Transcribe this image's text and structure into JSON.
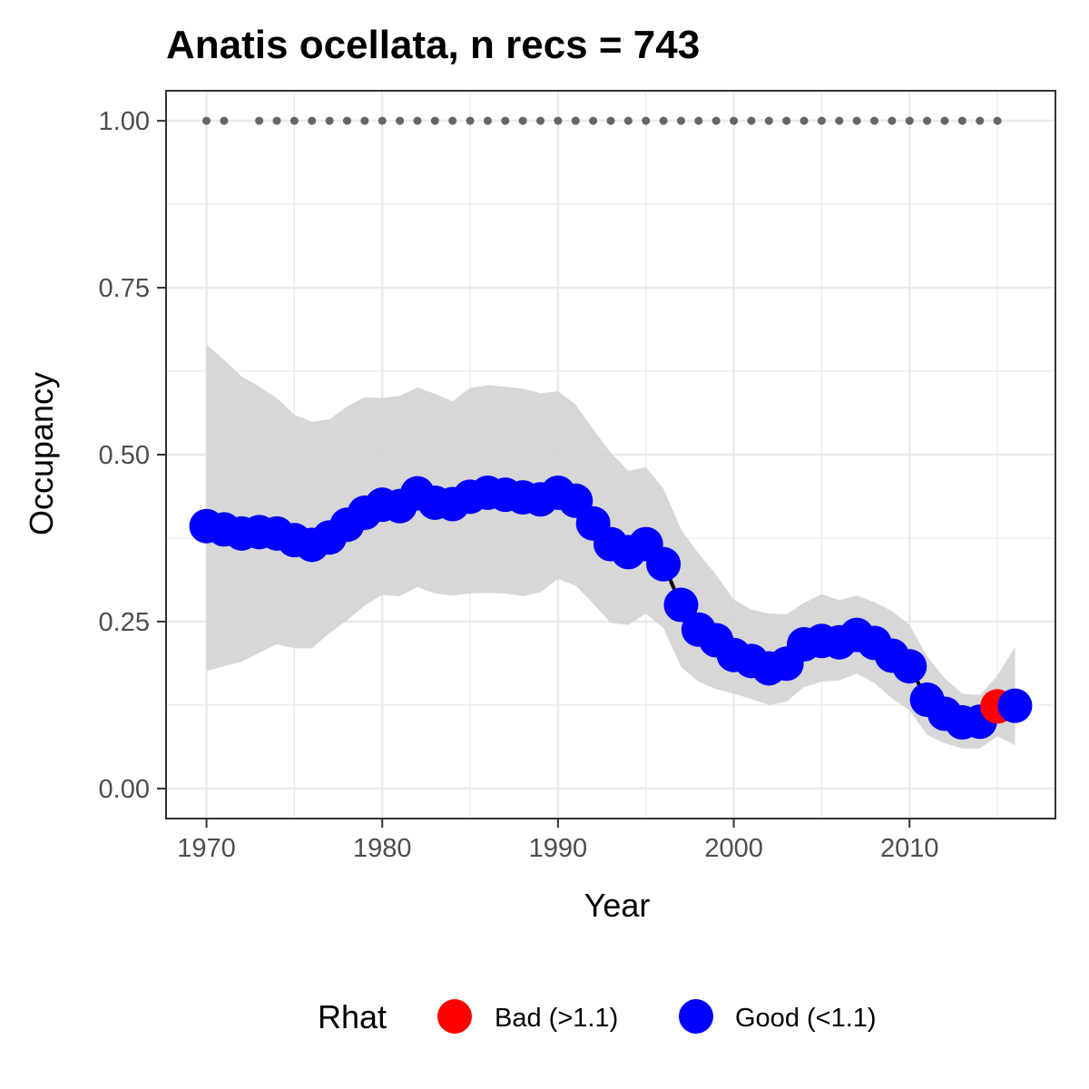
{
  "chart_data": {
    "type": "line",
    "title": "Anatis ocellata, n recs = 743",
    "xlabel": "Year",
    "ylabel": "Occupancy",
    "xlim": [
      1967.7,
      2018.3
    ],
    "ylim": [
      -0.045,
      1.045
    ],
    "x_ticks": [
      1970,
      1980,
      1990,
      2000,
      2010
    ],
    "x_tick_labels": [
      "1970",
      "1980",
      "1990",
      "2000",
      "2010"
    ],
    "y_ticks": [
      0,
      0.25,
      0.5,
      0.75,
      1.0
    ],
    "y_tick_labels": [
      "0.00",
      "0.25",
      "0.50",
      "0.75",
      "1.00"
    ],
    "grid": true,
    "colors": {
      "bad": "#ff0000",
      "good": "#0000ff",
      "ribbon": "#d3d3d3",
      "line": "#000000",
      "records": "#666666",
      "grid": "#ebebeb",
      "panel_border": "#333333"
    },
    "legend": {
      "title": "Rhat",
      "position": "bottom",
      "entries": [
        {
          "key": "bad",
          "label": "Bad (>1.1)"
        },
        {
          "key": "good",
          "label": "Good (<1.1)"
        }
      ]
    },
    "series": [
      {
        "x": [
          1970,
          1971,
          1972,
          1973,
          1974,
          1975,
          1976,
          1977,
          1978,
          1979,
          1980,
          1981,
          1982,
          1983,
          1984,
          1985,
          1986,
          1987,
          1988,
          1989,
          1990,
          1991,
          1992,
          1993,
          1994,
          1995,
          1996,
          1997,
          1998,
          1999,
          2000,
          2001,
          2002,
          2003,
          2004,
          2005,
          2006,
          2007,
          2008,
          2009,
          2010,
          2011,
          2012,
          2013,
          2014,
          2015,
          2016
        ],
        "y": [
          0.393,
          0.388,
          0.382,
          0.384,
          0.382,
          0.372,
          0.365,
          0.376,
          0.395,
          0.413,
          0.425,
          0.423,
          0.442,
          0.428,
          0.426,
          0.437,
          0.443,
          0.44,
          0.436,
          0.433,
          0.443,
          0.431,
          0.397,
          0.366,
          0.354,
          0.366,
          0.336,
          0.275,
          0.238,
          0.222,
          0.2,
          0.191,
          0.18,
          0.187,
          0.216,
          0.221,
          0.219,
          0.23,
          0.218,
          0.199,
          0.183,
          0.133,
          0.112,
          0.099,
          0.1,
          0.123,
          0.124
        ],
        "lower": [
          0.176,
          0.183,
          0.19,
          0.203,
          0.216,
          0.21,
          0.21,
          0.233,
          0.252,
          0.274,
          0.29,
          0.288,
          0.302,
          0.292,
          0.289,
          0.292,
          0.293,
          0.292,
          0.288,
          0.294,
          0.314,
          0.304,
          0.277,
          0.248,
          0.245,
          0.262,
          0.24,
          0.182,
          0.16,
          0.149,
          0.142,
          0.134,
          0.125,
          0.13,
          0.152,
          0.16,
          0.162,
          0.172,
          0.158,
          0.135,
          0.117,
          0.08,
          0.068,
          0.06,
          0.06,
          0.078,
          0.065
        ],
        "upper": [
          0.665,
          0.642,
          0.617,
          0.602,
          0.585,
          0.56,
          0.549,
          0.553,
          0.572,
          0.586,
          0.585,
          0.588,
          0.601,
          0.591,
          0.58,
          0.6,
          0.604,
          0.602,
          0.599,
          0.592,
          0.595,
          0.575,
          0.538,
          0.503,
          0.476,
          0.481,
          0.449,
          0.388,
          0.352,
          0.32,
          0.283,
          0.268,
          0.262,
          0.261,
          0.278,
          0.291,
          0.282,
          0.289,
          0.279,
          0.266,
          0.245,
          0.198,
          0.165,
          0.142,
          0.14,
          0.169,
          0.212
        ],
        "rhat": [
          "good",
          "good",
          "good",
          "good",
          "good",
          "good",
          "good",
          "good",
          "good",
          "good",
          "good",
          "good",
          "good",
          "good",
          "good",
          "good",
          "good",
          "good",
          "good",
          "good",
          "good",
          "good",
          "good",
          "good",
          "good",
          "good",
          "good",
          "good",
          "good",
          "good",
          "good",
          "good",
          "good",
          "good",
          "good",
          "good",
          "good",
          "good",
          "good",
          "good",
          "good",
          "good",
          "good",
          "good",
          "good",
          "bad",
          "good"
        ]
      }
    ],
    "records": {
      "x": [
        1970,
        1971,
        1973,
        1974,
        1975,
        1976,
        1977,
        1978,
        1979,
        1980,
        1981,
        1982,
        1983,
        1984,
        1985,
        1986,
        1987,
        1988,
        1989,
        1990,
        1991,
        1992,
        1993,
        1994,
        1995,
        1996,
        1997,
        1998,
        1999,
        2000,
        2001,
        2002,
        2003,
        2004,
        2005,
        2006,
        2007,
        2008,
        2009,
        2010,
        2011,
        2012,
        2013,
        2014,
        2015
      ],
      "y": 1.0
    }
  }
}
